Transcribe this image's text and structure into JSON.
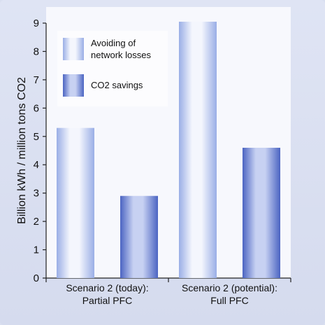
{
  "chart_data": {
    "type": "bar",
    "categories": [
      [
        "Scenario 2 (today):",
        "Partial PFC"
      ],
      [
        "Scenario 2 (potential):",
        "Full PFC"
      ]
    ],
    "series": [
      {
        "name": "Avoiding of network losses",
        "values": [
          5.3,
          9.05
        ],
        "color_light": "#f4f6fd",
        "color_dark": "#9aaee6"
      },
      {
        "name": "CO2 savings",
        "values": [
          2.9,
          4.6
        ],
        "color_light": "#c7d1f2",
        "color_dark": "#4b64c2"
      }
    ],
    "legend": {
      "position": "top-left",
      "entries": [
        [
          "Avoiding of",
          "network losses"
        ],
        [
          "CO2 savings"
        ]
      ]
    },
    "ylabel": "Billion kWh / million tons CO2",
    "ylim": [
      0,
      9
    ],
    "yticks": [
      "0",
      "1",
      "2",
      "3",
      "4",
      "5",
      "6",
      "7",
      "8",
      "9"
    ],
    "grid": false
  }
}
